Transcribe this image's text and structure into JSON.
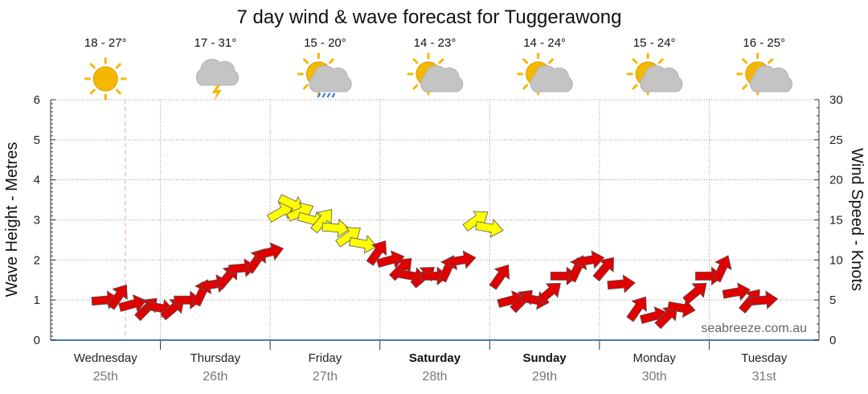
{
  "chart_data": {
    "type": "line",
    "title": "7 day wind & wave forecast for Tuggerawong",
    "ylabel_left": "Wave Height - Metres",
    "ylabel_right": "Wind Speed - Knots",
    "ylim_left": [
      0,
      6
    ],
    "ylim_right": [
      0,
      30
    ],
    "yticks_left": [
      "0",
      "1",
      "2",
      "3",
      "4",
      "5",
      "6"
    ],
    "yticks_right": [
      "0",
      "5",
      "10",
      "15",
      "20",
      "25",
      "30"
    ],
    "days": [
      {
        "name": "Wednesday",
        "date": "25th",
        "bold": false,
        "temp": "18 - 27°",
        "weather": "sunny-icon"
      },
      {
        "name": "Thursday",
        "date": "26th",
        "bold": false,
        "temp": "17 - 31°",
        "weather": "storm-icon"
      },
      {
        "name": "Friday",
        "date": "27th",
        "bold": false,
        "temp": "15 - 20°",
        "weather": "showers-icon"
      },
      {
        "name": "Saturday",
        "date": "28th",
        "bold": true,
        "temp": "14 - 23°",
        "weather": "partly-cloudy-icon"
      },
      {
        "name": "Sunday",
        "date": "29th",
        "bold": true,
        "temp": "14 - 24°",
        "weather": "partly-cloudy-icon"
      },
      {
        "name": "Monday",
        "date": "30th",
        "bold": false,
        "temp": "15 - 24°",
        "weather": "partly-cloudy-icon"
      },
      {
        "name": "Tuesday",
        "date": "31st",
        "bold": false,
        "temp": "16 - 25°",
        "weather": "partly-cloudy-icon"
      }
    ],
    "wind_series": {
      "name": "Wind",
      "unit": "knots",
      "x_days": [
        0.5,
        0.62,
        0.75,
        0.88,
        1.0,
        1.12,
        1.25,
        1.38,
        1.5,
        1.62,
        1.75,
        1.88,
        2.0,
        2.1,
        2.2,
        2.28,
        2.38,
        2.48,
        2.6,
        2.72,
        2.85,
        2.98,
        3.1,
        3.2,
        3.3,
        3.4,
        3.5,
        3.62,
        3.75,
        3.88,
        4.0,
        4.1,
        4.2,
        4.3,
        4.42,
        4.55,
        4.68,
        4.8,
        4.92,
        5.05,
        5.2,
        5.35,
        5.5,
        5.62,
        5.75,
        5.88,
        6.0,
        6.12,
        6.25,
        6.38,
        6.5
      ],
      "speeds": [
        5,
        5.5,
        4.5,
        4,
        4,
        4,
        5,
        6,
        7,
        8,
        9,
        10,
        11,
        16,
        17,
        16,
        15,
        15,
        14,
        13,
        12,
        11,
        10,
        9,
        8,
        8,
        8,
        9,
        10,
        15,
        14,
        8,
        5,
        5,
        5,
        6,
        8,
        9,
        10,
        9,
        7,
        4,
        3,
        3,
        4,
        6,
        8,
        9,
        6,
        5,
        5
      ],
      "colors": {
        "light": "#e00000",
        "moderate": "#ffff00"
      }
    },
    "wave_series": {
      "name": "Wave height",
      "values": [
        0,
        0,
        0,
        0,
        0,
        0,
        0
      ]
    },
    "grid": true,
    "legend": "none"
  },
  "watermark": "seabreeze.com.au"
}
